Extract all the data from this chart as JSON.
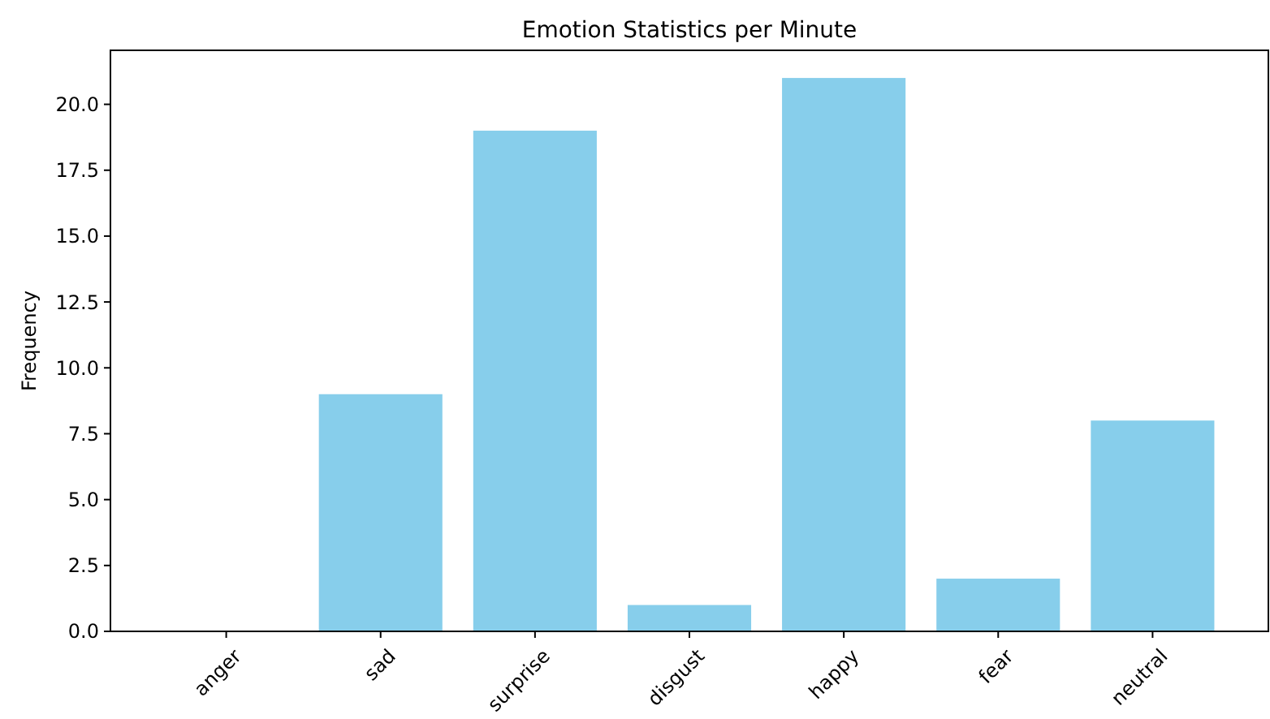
{
  "chart_data": {
    "type": "bar",
    "title": "Emotion Statistics per Minute",
    "ylabel": "Frequency",
    "categories": [
      "anger",
      "sad",
      "surprise",
      "disgust",
      "happy",
      "fear",
      "neutral"
    ],
    "values": [
      0,
      9,
      19,
      1,
      21,
      2,
      8
    ],
    "color": "#87ceeb",
    "ylim": [
      0,
      22.05
    ],
    "yticks": [
      {
        "value": 0,
        "label": "0.0"
      },
      {
        "value": 2.5,
        "label": "2.5"
      },
      {
        "value": 5,
        "label": "5.0"
      },
      {
        "value": 7.5,
        "label": "7.5"
      },
      {
        "value": 10,
        "label": "10.0"
      },
      {
        "value": 12.5,
        "label": "12.5"
      },
      {
        "value": 15,
        "label": "15.0"
      },
      {
        "value": 17.5,
        "label": "17.5"
      },
      {
        "value": 20,
        "label": "20.0"
      }
    ],
    "grid": false
  }
}
